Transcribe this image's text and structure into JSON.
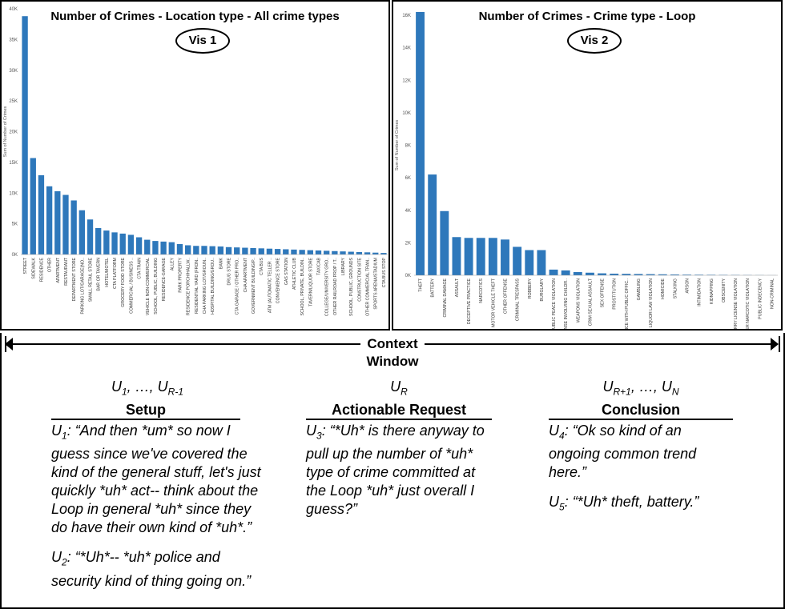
{
  "vis1": {
    "title": "Number of Crimes - Location type - All crime types",
    "label": "Vis 1",
    "ylabel": "Sum of Number of Crimes",
    "y_ticks": [
      "0K",
      "5K",
      "10K",
      "15K",
      "20K",
      "25K",
      "30K",
      "35K",
      "40K"
    ]
  },
  "vis2": {
    "title": "Number of Crimes - Crime type - Loop",
    "label": "Vis 2",
    "ylabel": "Sum of Number of Crimes",
    "y_ticks": [
      "0K",
      "2K",
      "4K",
      "6K",
      "8K",
      "10K",
      "12K",
      "14K",
      "16K"
    ]
  },
  "chart_data": [
    {
      "type": "bar",
      "title": "Number of Crimes - Location type - All crime types",
      "ylabel": "Sum of Number of Crimes",
      "ylim": [
        0,
        40000
      ],
      "categories": [
        "STREET",
        "SIDEWALK",
        "RESIDENCE",
        "OTHER",
        "APARTMENT",
        "RESTAURANT",
        "DEPARTMENT STORE",
        "PARKING LOT/GARAGE(NO..",
        "SMALL RETAIL STORE",
        "BAR OR TAVERN",
        "HOTEL/MOTEL",
        "CTA PLATFORM",
        "GROCERY FOOD STORE",
        "COMMERCIAL / BUSINESS ..",
        "CTA TRAIN",
        "VEHICLE NON-COMMERCIAL",
        "SCHOOL, PUBLIC, BUILDING",
        "RESIDENCE-GARAGE",
        "ALLEY",
        "PARK PROPERTY",
        "RESIDENCE PORCH/HALLW..",
        "RESIDENTIAL YARD (FRON..",
        "CHA PARKING LOT/GROUN..",
        "HOSPITAL BUILDING/GROU..",
        "BANK",
        "DRUG STORE",
        "CTA GARAGE / OTHER PRO..",
        "CHA APARTMENT",
        "GOVERNMENT BUILDING/P..",
        "CTA BUS",
        "ATM (AUTOMATIC TELLER ..",
        "CONVENIENCE STORE",
        "GAS STATION",
        "ATHLETIC CLUB",
        "SCHOOL, PRIVATE, BUILDIN..",
        "TAVERN/LIQUOR STORE",
        "TAXICAB",
        "COLLEGE/UNIVERSITY GRO..",
        "OTHER RAILROAD PROP / T..",
        "LIBRARY",
        "SCHOOL, PUBLIC, GROUNDS",
        "CONSTRUCTION SITE",
        "OTHER COMMERCIAL TRAN..",
        "SPORTS ARENA/STADIUM",
        "CTA BUS STOP"
      ],
      "values": [
        38800,
        15700,
        12900,
        11100,
        10300,
        9700,
        8800,
        7200,
        5700,
        4300,
        3900,
        3600,
        3400,
        3200,
        2800,
        2400,
        2200,
        2100,
        2000,
        1700,
        1500,
        1400,
        1400,
        1350,
        1300,
        1200,
        1150,
        1100,
        1050,
        1000,
        950,
        900,
        850,
        800,
        750,
        700,
        650,
        600,
        550,
        500,
        450,
        400,
        350,
        300,
        250
      ]
    },
    {
      "type": "bar",
      "title": "Number of Crimes - Crime type - Loop",
      "ylabel": "Sum of Number of Crimes",
      "ylim": [
        0,
        16000
      ],
      "categories": [
        "THEFT",
        "BATTERY",
        "CRIMINAL DAMAGE",
        "ASSAULT",
        "DECEPTIVE PRACTICE",
        "NARCOTICS",
        "MOTOR VEHICLE THEFT",
        "OTHER OFFENSE",
        "CRIMINAL TRESPASS",
        "ROBBERY",
        "BURGLARY",
        "PUBLIC PEACE VIOLATION",
        "OFFENSE INVOLVING CHILDR..",
        "WEAPONS VIOLATION",
        "CRIM SEXUAL ASSAULT",
        "SEX OFFENSE",
        "PROSTITUTION",
        "INTERFERENCE WITH PUBLIC OFFIC..",
        "GAMBLING",
        "LIQUOR LAW VIOLATION",
        "HOMICIDE",
        "STALKING",
        "ARSON",
        "INTIMIDATION",
        "KIDNAPPING",
        "OBSCENITY",
        "CONCEALED CARRY LICENSE VIOLATION",
        "OTHER NARCOTIC VIOLATION",
        "PUBLIC INDECENCY",
        "NON-CRIMINAL"
      ],
      "values": [
        16200,
        6200,
        3950,
        2350,
        2300,
        2300,
        2300,
        2200,
        1750,
        1550,
        1550,
        350,
        300,
        200,
        160,
        120,
        100,
        90,
        80,
        70,
        60,
        50,
        40,
        35,
        30,
        25,
        20,
        15,
        10,
        5
      ]
    }
  ],
  "context": {
    "title_line1": "Context",
    "title_line2": "Window",
    "setup": {
      "u_main": "U",
      "u_sub1": "1",
      "u_mid": ", …, U",
      "u_sub2": "R-1",
      "heading": "Setup",
      "utterances": [
        {
          "u": "U",
          "sub": "1",
          "text": ": “And then *um* so now I guess since we've covered the kind of the general stuff, let's just quickly *uh* act-- think about the Loop in general *uh* since they do have their own kind of *uh*.”"
        },
        {
          "u": "U",
          "sub": "2",
          "text": ": “*Uh*-- *uh* police and security kind of thing going on.”"
        }
      ]
    },
    "request": {
      "u_main": "U",
      "u_sub1": "R",
      "heading": "Actionable Request",
      "utterances": [
        {
          "u": "U",
          "sub": "3",
          "text": ": “*Uh* is there anyway to pull up the number of *uh* type of crime committed at the Loop *uh* just overall I guess?”"
        }
      ]
    },
    "conclusion": {
      "u_main": "U",
      "u_sub1": "R+1",
      "u_mid": ", …, U",
      "u_sub2": "N",
      "heading": "Conclusion",
      "utterances": [
        {
          "u": "U",
          "sub": "4",
          "text": ": “Ok so kind of an ongoing common trend here.”"
        },
        {
          "u": "U",
          "sub": "5",
          "text": ": “*Uh* theft, battery.”"
        }
      ]
    }
  },
  "colors": {
    "bar": "#2e78bb",
    "axis": "#999999",
    "tick_text": "#555555"
  }
}
